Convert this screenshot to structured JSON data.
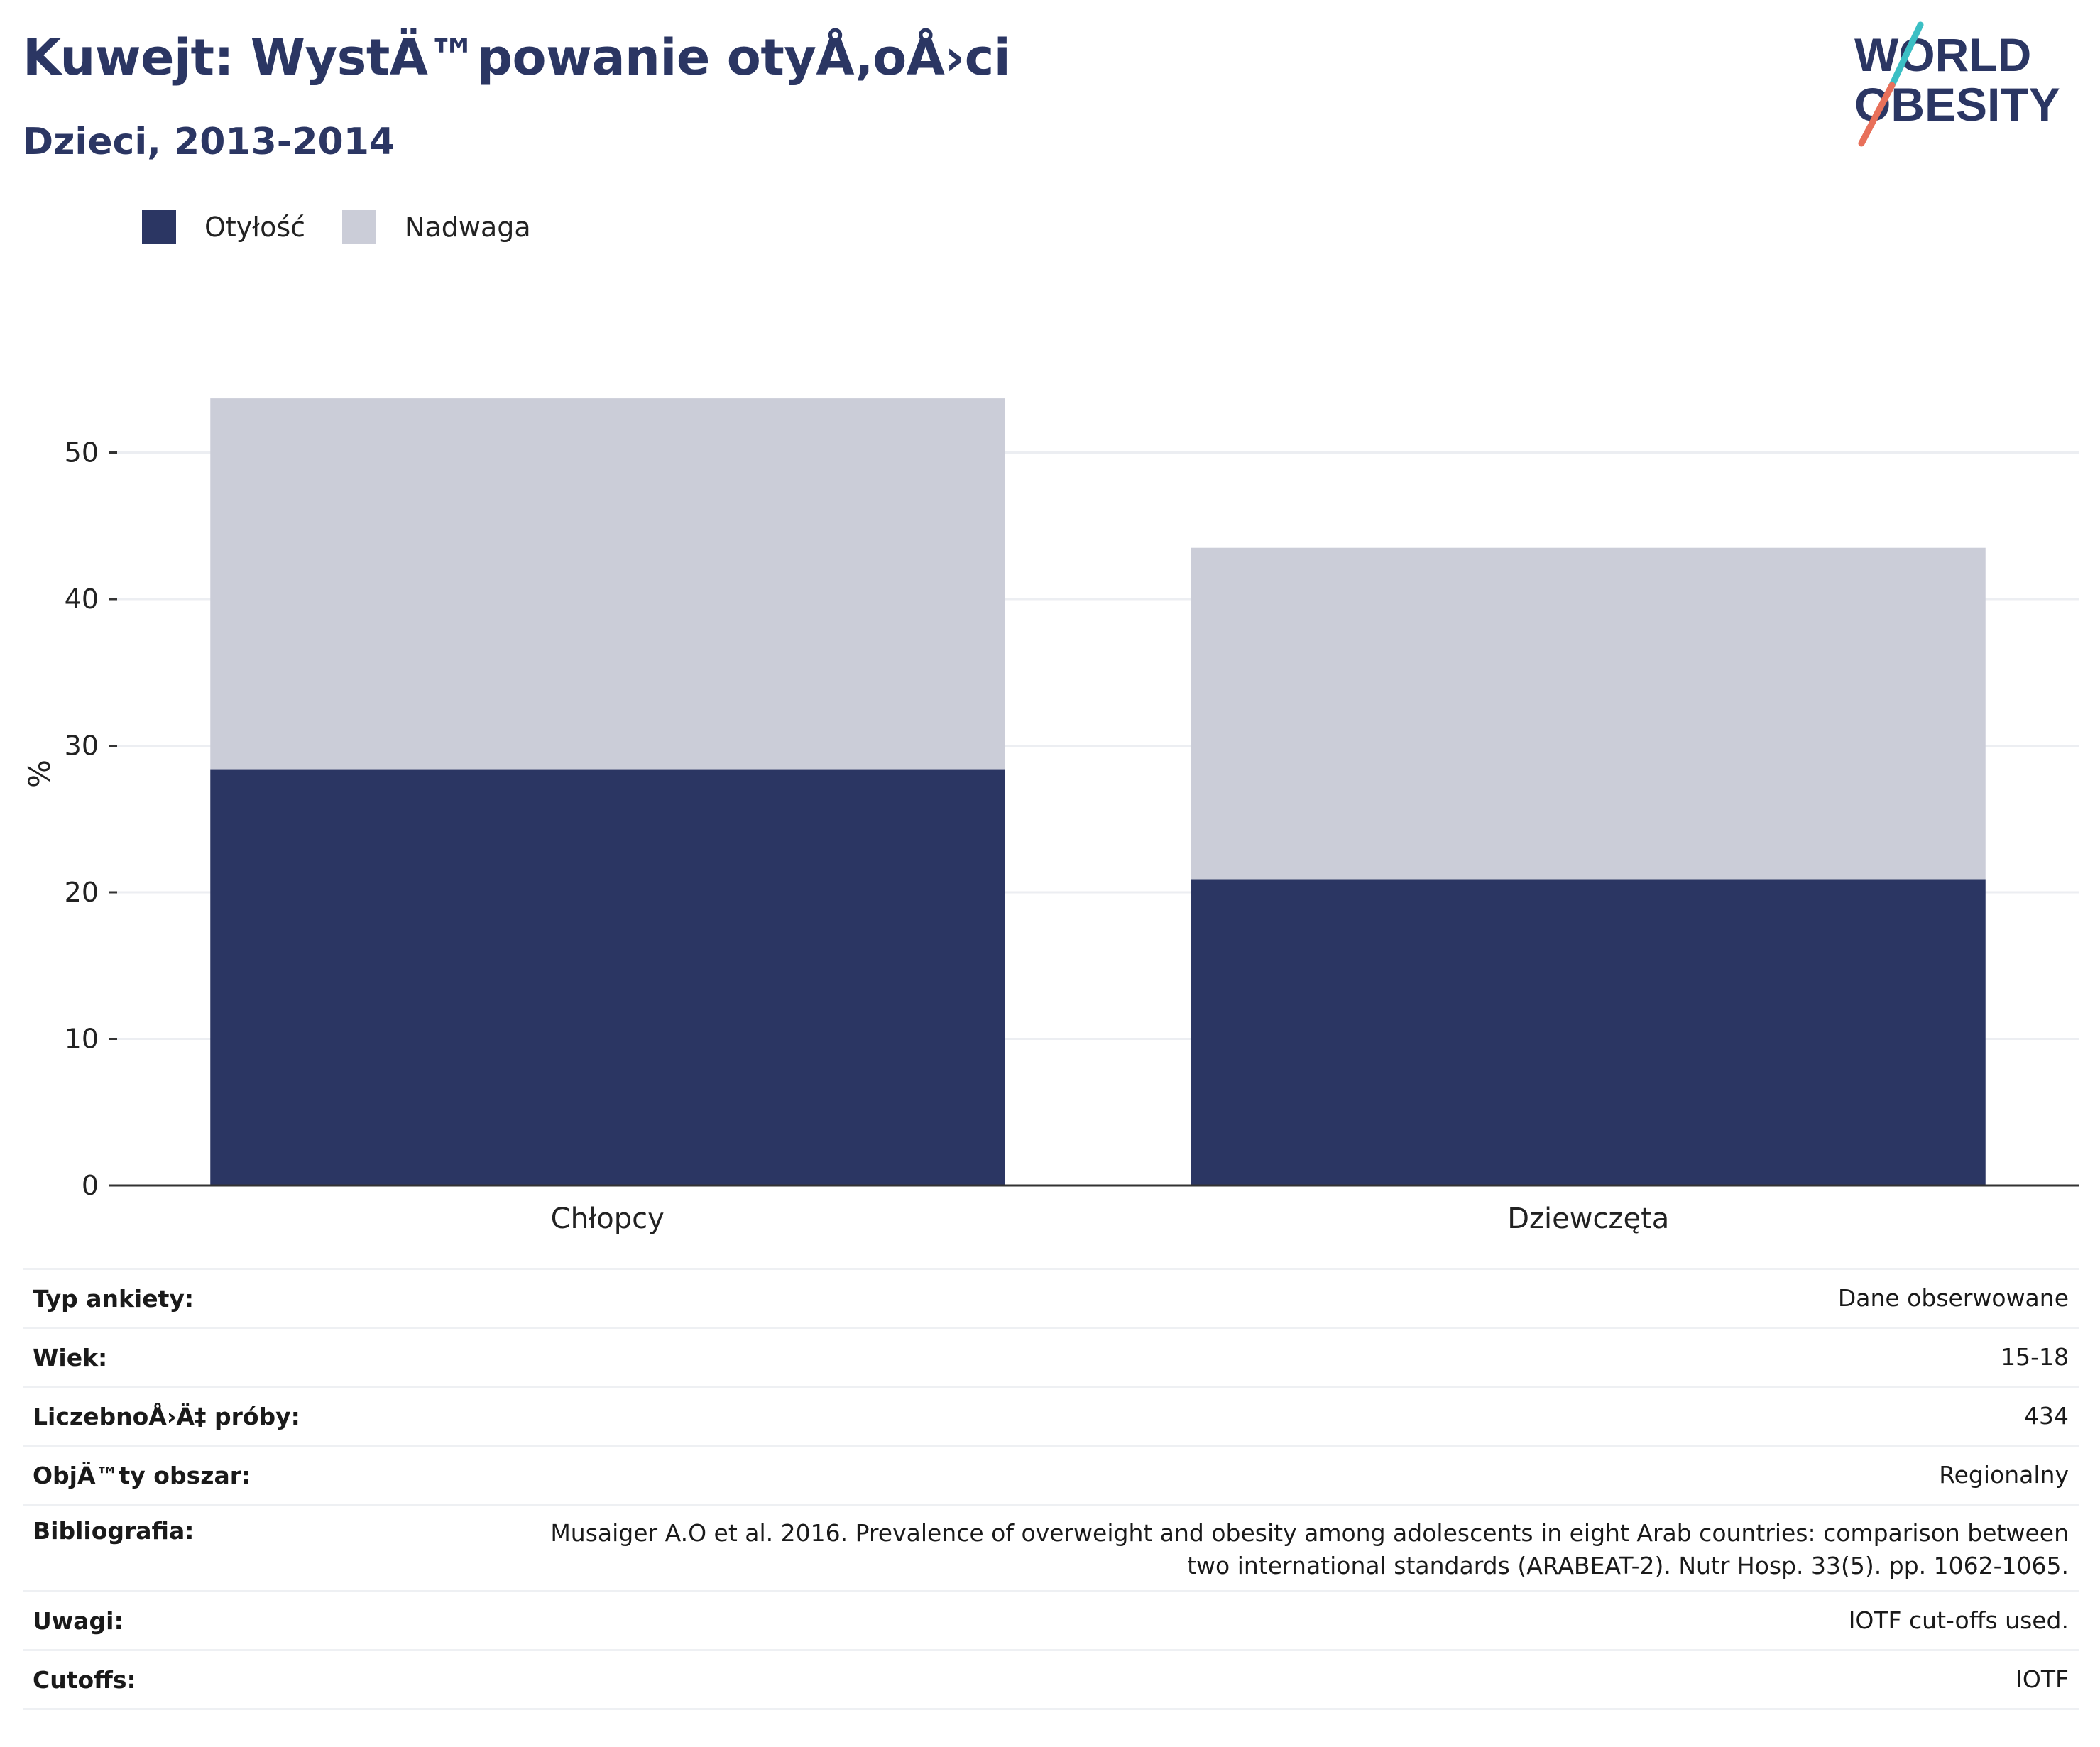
{
  "header": {
    "title": "Kuwejt: WystÄ™powanie otyÅ‚oÅ›ci",
    "subtitle": "Dzieci, 2013-2014"
  },
  "logo": {
    "line1": "WORLD",
    "line2": "OBESITY",
    "colors": {
      "text": "#2b3663",
      "slash_teal": "#3bbfc4",
      "slash_coral": "#e8705a"
    }
  },
  "colors": {
    "obesity": "#2b3663",
    "overweight": "#cbcdd8",
    "grid": "#eceef2",
    "axis": "#333333"
  },
  "chart_data": {
    "type": "bar",
    "stacked": true,
    "categories": [
      "Chłopcy",
      "Dziewczęta"
    ],
    "series": [
      {
        "name": "Otyłość",
        "values": [
          28.4,
          20.9
        ]
      },
      {
        "name": "Nadwaga",
        "values": [
          25.3,
          22.6
        ]
      }
    ],
    "title": "Kuwejt: WystÄ™powanie otyÅ‚oÅ›ci",
    "subtitle": "Dzieci, 2013-2014",
    "xlabel": "",
    "ylabel": "%",
    "ylim": [
      0,
      57
    ],
    "yticks": [
      0,
      10,
      20,
      30,
      40,
      50
    ],
    "grid": true,
    "legend_position": "top-left"
  },
  "meta": [
    {
      "label": "Typ ankiety:",
      "value": "Dane obserwowane"
    },
    {
      "label": "Wiek:",
      "value": "15-18"
    },
    {
      "label": "LiczebnoÅ›Ä‡ próby:",
      "value": "434"
    },
    {
      "label": "ObjÄ™ty obszar:",
      "value": "Regionalny"
    },
    {
      "label": "Bibliografia:",
      "value": "Musaiger A.O et al. 2016. Prevalence of overweight and obesity among adolescents in eight Arab countries: comparison between two international standards (ARABEAT-2). Nutr Hosp. 33(5). pp. 1062-1065."
    },
    {
      "label": "Uwagi:",
      "value": "IOTF cut-offs used."
    },
    {
      "label": "Cutoffs:",
      "value": "IOTF"
    }
  ]
}
